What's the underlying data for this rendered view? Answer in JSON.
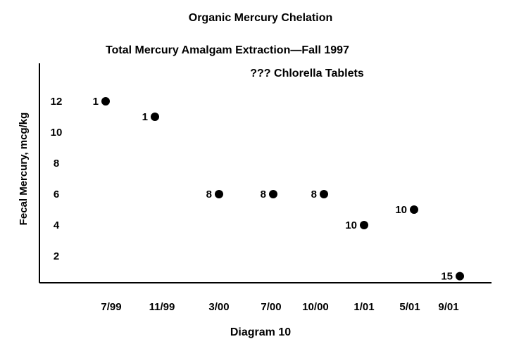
{
  "chart_data": {
    "type": "scatter",
    "title": "Organic Mercury Chelation",
    "subtitle": "Total Mercury Amalgam Extraction—Fall 1997",
    "annotation": "??? Chlorella Tablets",
    "ylabel": "Fecal Mercury, mcg/kg",
    "caption": "Diagram 10",
    "categories": [
      "7/99",
      "11/99",
      "3/00",
      "7/00",
      "10/00",
      "1/01",
      "5/01",
      "9/01"
    ],
    "yticks": [
      2,
      4,
      6,
      8,
      10,
      12
    ],
    "ylim": [
      0,
      12.5
    ],
    "points": [
      {
        "x": "7/99",
        "y": 12,
        "label": "1"
      },
      {
        "x": "11/99",
        "y": 11,
        "label": "1"
      },
      {
        "x": "3/00",
        "y": 6,
        "label": "8"
      },
      {
        "x": "7/00",
        "y": 6,
        "label": "8"
      },
      {
        "x": "10/00",
        "y": 6,
        "label": "8"
      },
      {
        "x": "1/01",
        "y": 4,
        "label": "10"
      },
      {
        "x": "5/01",
        "y": 5,
        "label": "10"
      },
      {
        "x": "9/01",
        "y": 0.7,
        "label": "15"
      }
    ],
    "grid": false,
    "marker_color": "#000000"
  }
}
